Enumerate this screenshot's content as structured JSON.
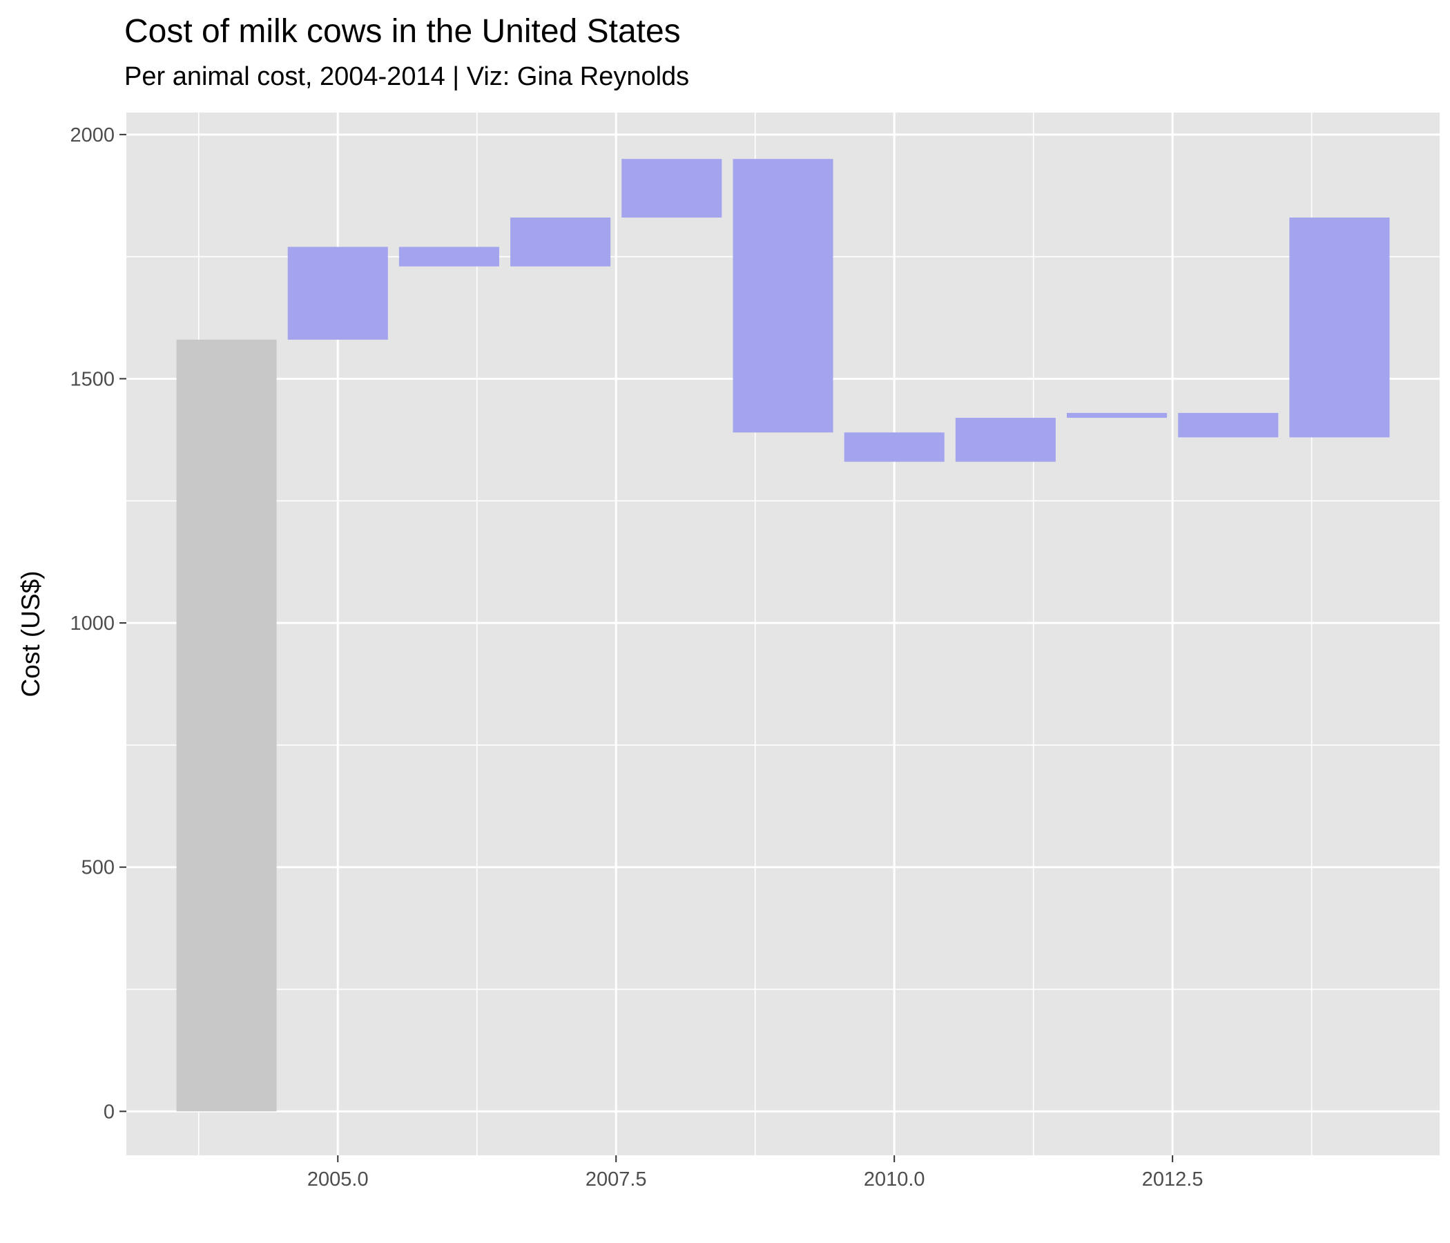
{
  "chart_data": {
    "type": "waterfall",
    "title": "Cost of milk cows in the United States",
    "subtitle": "Per animal cost, 2004-2014 | Viz: Gina Reynolds",
    "xlabel": "",
    "ylabel": "Cost (US$)",
    "xlim": [
      2003.1,
      2014.9
    ],
    "ylim": [
      -90,
      2045
    ],
    "x_ticks": [
      2005.0,
      2007.5,
      2010.0,
      2012.5
    ],
    "x_tick_labels": [
      "2005.0",
      "2007.5",
      "2010.0",
      "2012.5"
    ],
    "y_ticks": [
      0,
      500,
      1000,
      1500,
      2000
    ],
    "y_tick_labels": [
      "0",
      "500",
      "1000",
      "1500",
      "2000"
    ],
    "grid": true,
    "bars": [
      {
        "x": 2004,
        "start": 0,
        "end": 1580,
        "kind": "base"
      },
      {
        "x": 2005,
        "start": 1580,
        "end": 1770,
        "kind": "change"
      },
      {
        "x": 2006,
        "start": 1770,
        "end": 1730,
        "kind": "change"
      },
      {
        "x": 2007,
        "start": 1730,
        "end": 1830,
        "kind": "change"
      },
      {
        "x": 2008,
        "start": 1830,
        "end": 1950,
        "kind": "change"
      },
      {
        "x": 2009,
        "start": 1950,
        "end": 1390,
        "kind": "change"
      },
      {
        "x": 2010,
        "start": 1390,
        "end": 1330,
        "kind": "change"
      },
      {
        "x": 2011,
        "start": 1330,
        "end": 1420,
        "kind": "change"
      },
      {
        "x": 2012,
        "start": 1420,
        "end": 1430,
        "kind": "change"
      },
      {
        "x": 2013,
        "start": 1430,
        "end": 1380,
        "kind": "change"
      },
      {
        "x": 2014,
        "start": 1380,
        "end": 1830,
        "kind": "change"
      }
    ],
    "colors": {
      "panel_background": "#e5e5e5",
      "grid": "#ffffff",
      "base_bar": "#c8c8c8",
      "change_bar": "#a3a3ee"
    }
  }
}
